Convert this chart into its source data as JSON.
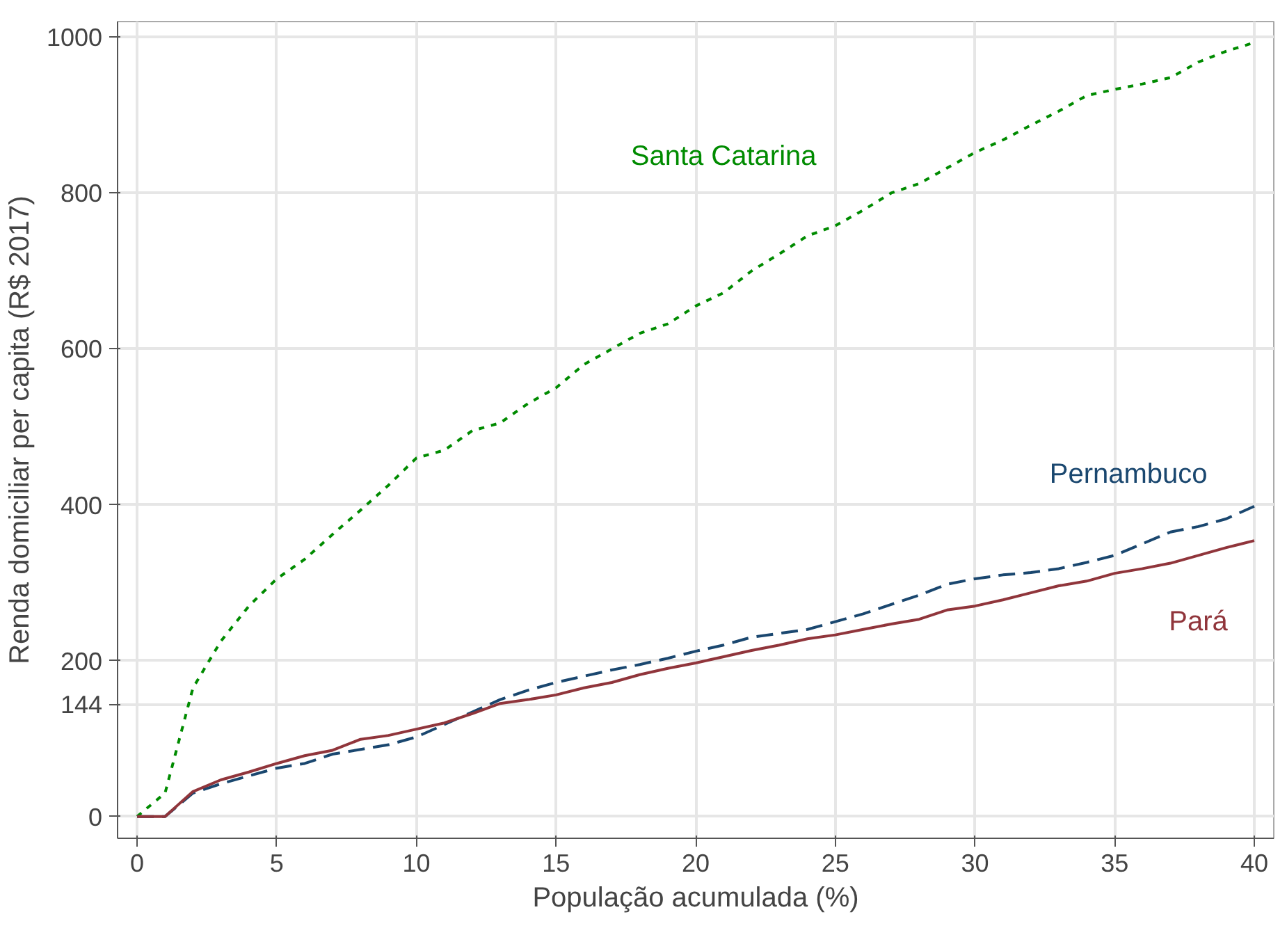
{
  "chart_data": {
    "type": "line",
    "xlabel": "População acumulada (%)",
    "ylabel": "Renda domiciliar per capita (R$ 2017)",
    "x": [
      0,
      1,
      2,
      3,
      4,
      5,
      6,
      7,
      8,
      9,
      10,
      11,
      12,
      13,
      14,
      15,
      16,
      17,
      18,
      19,
      20,
      21,
      22,
      23,
      24,
      25,
      26,
      27,
      28,
      29,
      30,
      31,
      32,
      33,
      34,
      35,
      36,
      37,
      38,
      39,
      40
    ],
    "series": [
      {
        "name": "Santa Catarina",
        "color": "#008b00",
        "line_style": "dotted",
        "values": [
          0,
          30,
          165,
          225,
          270,
          305,
          330,
          362,
          393,
          425,
          460,
          470,
          495,
          505,
          530,
          550,
          580,
          600,
          620,
          632,
          655,
          672,
          700,
          722,
          745,
          758,
          778,
          800,
          812,
          832,
          852,
          868,
          887,
          905,
          925,
          933,
          940,
          948,
          968,
          982,
          993
        ]
      },
      {
        "name": "Pernambuco",
        "color": "#1a476f",
        "line_style": "dashed",
        "values": [
          0,
          0,
          30,
          42,
          52,
          62,
          68,
          80,
          86,
          92,
          102,
          118,
          134,
          150,
          162,
          172,
          180,
          188,
          195,
          203,
          212,
          220,
          230,
          235,
          240,
          250,
          260,
          272,
          284,
          298,
          305,
          310,
          313,
          318,
          326,
          335,
          350,
          365,
          372,
          382,
          398
        ]
      },
      {
        "name": "Pará",
        "color": "#90353b",
        "line_style": "solid",
        "values": [
          0,
          0,
          32,
          47,
          57,
          68,
          78,
          85,
          99,
          104,
          112,
          120,
          132,
          145,
          150,
          156,
          165,
          172,
          182,
          190,
          197,
          205,
          213,
          220,
          228,
          233,
          240,
          247,
          253,
          265,
          270,
          278,
          287,
          296,
          302,
          312,
          318,
          325,
          335,
          345,
          354
        ]
      }
    ],
    "xlim": [
      -0.7,
      40.7
    ],
    "ylim": [
      -28,
      1020
    ],
    "xticks": [
      0,
      5,
      10,
      15,
      20,
      25,
      30,
      35,
      40
    ],
    "yticks": [
      0,
      144,
      200,
      400,
      600,
      800,
      1000
    ],
    "grid": true,
    "legend": false
  }
}
